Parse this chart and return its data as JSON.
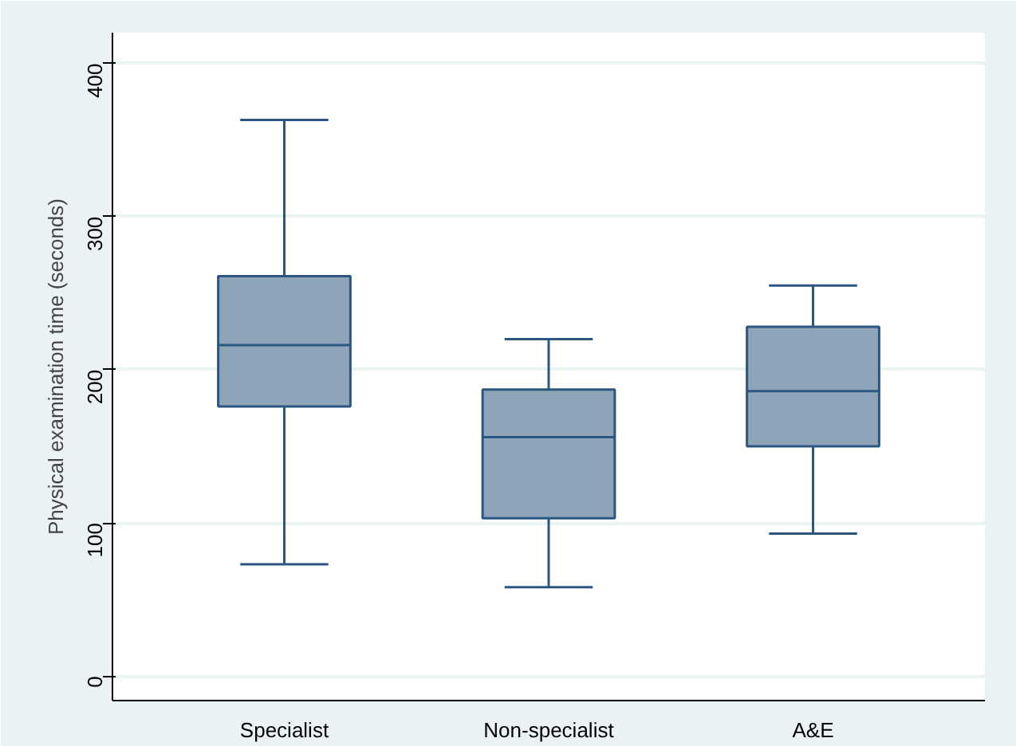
{
  "chart_data": {
    "type": "box",
    "ylabel": "Physical examination time (seconds)",
    "categories": [
      "Specialist",
      "Non-specialist",
      "A&E"
    ],
    "boxes": [
      {
        "low": 73,
        "q1": 176,
        "median": 216,
        "q3": 261,
        "high": 363
      },
      {
        "low": 58,
        "q1": 103,
        "median": 156,
        "q3": 187,
        "high": 220
      },
      {
        "low": 93,
        "q1": 150,
        "median": 186,
        "q3": 228,
        "high": 255
      }
    ],
    "color": "#8ea4b8",
    "ylim": [
      -16,
      420
    ],
    "yticks": [
      0,
      100,
      200,
      300,
      400
    ],
    "grid": "y"
  }
}
